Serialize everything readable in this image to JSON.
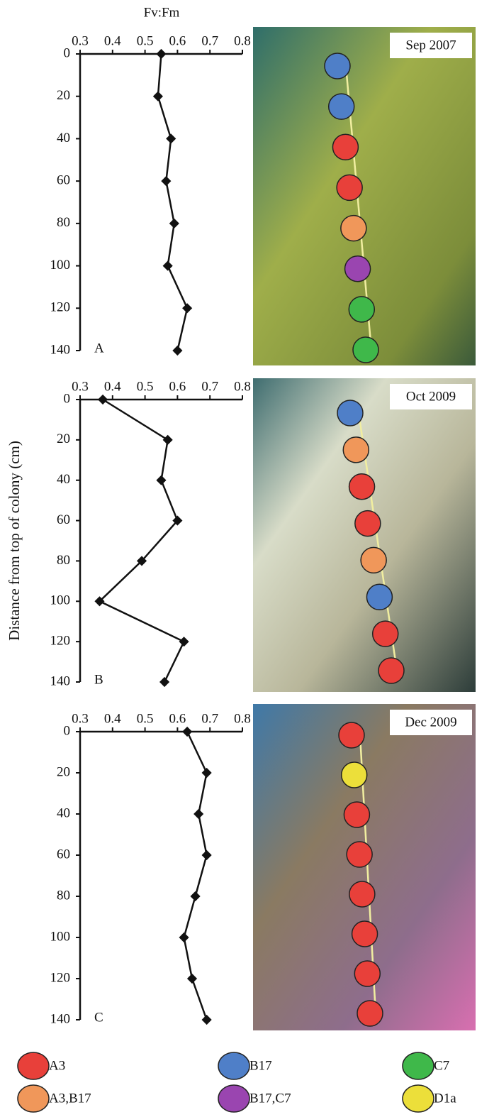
{
  "chart_data": [
    {
      "type": "line",
      "xlabel": "Fv:Fm",
      "panel_label": "A",
      "photo_label": "Sep 2007",
      "x": [
        0.55,
        0.54,
        0.58,
        0.565,
        0.59,
        0.57,
        0.63,
        0.6
      ],
      "y": [
        0,
        20,
        40,
        60,
        80,
        100,
        120,
        140
      ],
      "xlim": [
        0.3,
        0.8
      ],
      "xticks": [
        0.3,
        0.4,
        0.5,
        0.6,
        0.7,
        0.8
      ],
      "ylim": [
        0,
        140
      ],
      "yticks": [
        0,
        20,
        40,
        60,
        80,
        100,
        120,
        140
      ],
      "y_inverted": true,
      "color": "#111111",
      "samples": [
        "B17",
        "B17",
        "A3",
        "A3",
        "A3,B17",
        "B17,C7",
        "C7",
        "C7"
      ]
    },
    {
      "type": "line",
      "ylabel": "Distance from top of colony (cm)",
      "panel_label": "B",
      "photo_label": "Oct 2009",
      "x": [
        0.37,
        0.57,
        0.55,
        0.6,
        0.49,
        0.36,
        0.62,
        0.56
      ],
      "y": [
        0,
        20,
        40,
        60,
        80,
        100,
        120,
        140
      ],
      "xlim": [
        0.3,
        0.8
      ],
      "xticks": [
        0.3,
        0.4,
        0.5,
        0.6,
        0.7,
        0.8
      ],
      "ylim": [
        0,
        140
      ],
      "yticks": [
        0,
        20,
        40,
        60,
        80,
        100,
        120,
        140
      ],
      "y_inverted": true,
      "color": "#111111",
      "samples": [
        "B17",
        "A3,B17",
        "A3",
        "A3",
        "A3,B17",
        "B17",
        "A3",
        "A3"
      ]
    },
    {
      "type": "line",
      "panel_label": "C",
      "photo_label": "Dec 2009",
      "x": [
        0.63,
        0.69,
        0.665,
        0.69,
        0.655,
        0.62,
        0.645,
        0.69
      ],
      "y": [
        0,
        20,
        40,
        60,
        80,
        100,
        120,
        140
      ],
      "xlim": [
        0.3,
        0.8
      ],
      "xticks": [
        0.3,
        0.4,
        0.5,
        0.6,
        0.7,
        0.8
      ],
      "ylim": [
        0,
        140
      ],
      "yticks": [
        0,
        20,
        40,
        60,
        80,
        100,
        120,
        140
      ],
      "y_inverted": true,
      "color": "#111111",
      "samples": [
        "A3",
        "D1a",
        "A3",
        "A3",
        "A3",
        "A3",
        "A3",
        "A3"
      ]
    }
  ],
  "legend": [
    {
      "name": "A3",
      "color": "#e8403a"
    },
    {
      "name": "B17",
      "color": "#4f7fc8"
    },
    {
      "name": "C7",
      "color": "#3fb84a"
    },
    {
      "name": "A3,B17",
      "color": "#f0975a"
    },
    {
      "name": "B17,C7",
      "color": "#9a45b0"
    },
    {
      "name": "D1a",
      "color": "#ecdf3a"
    }
  ]
}
